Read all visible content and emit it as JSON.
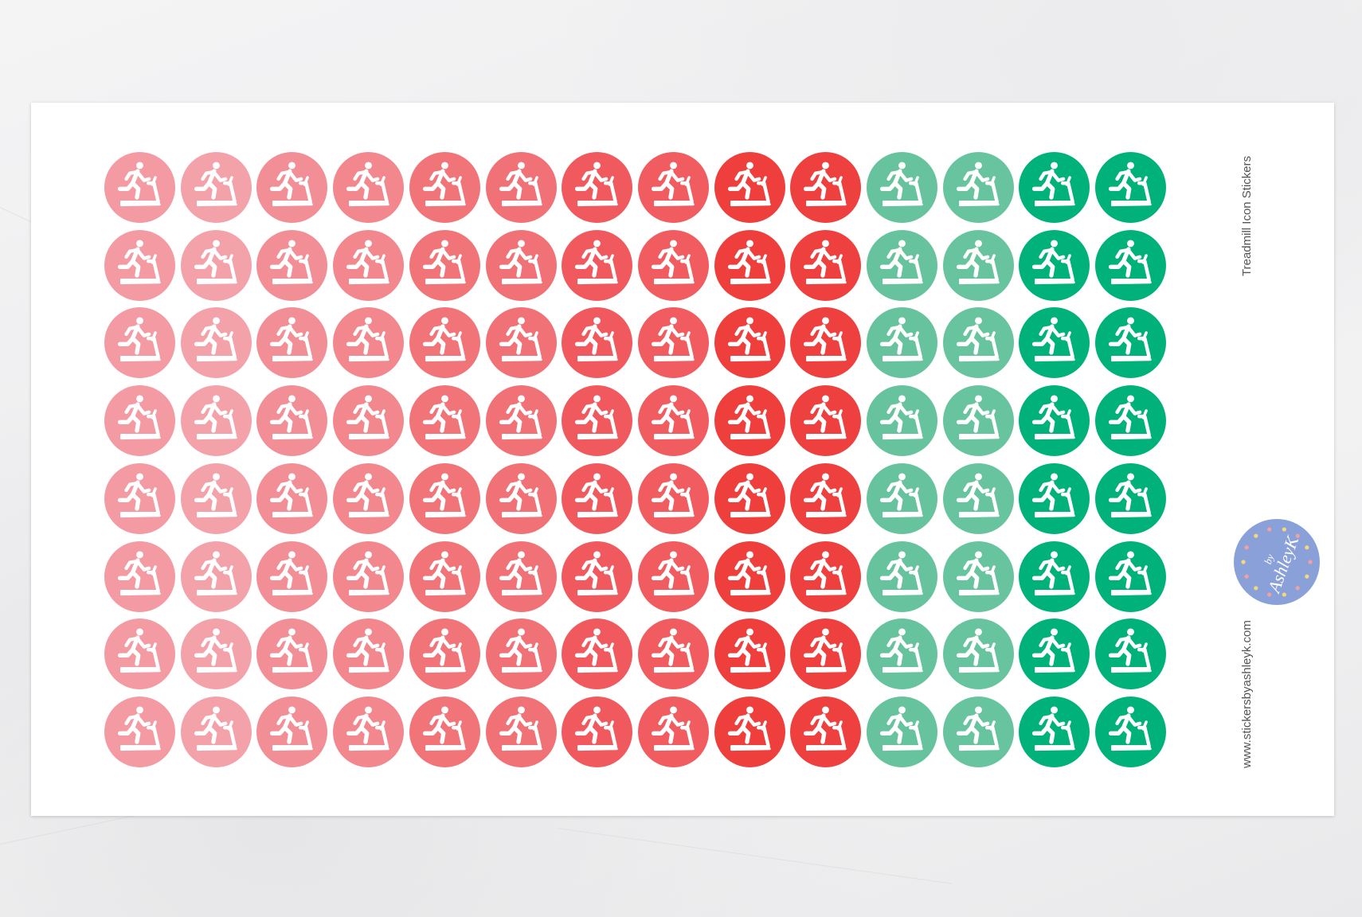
{
  "sheet": {
    "title": "Treadmill Icon Stickers",
    "website": "www.stickersbyashleyk.com",
    "logo": {
      "text": "by AshleyK",
      "color": "#8aa0d8",
      "heart_colors": [
        "#f4a0a0",
        "#f6d879"
      ]
    },
    "rows": 8,
    "icon": "treadmill-runner-icon",
    "icon_color": "#ffffff",
    "column_colors": [
      "#f39aa2",
      "#f4a2aa",
      "#f28e95",
      "#f2878e",
      "#f17479",
      "#f07176",
      "#f05a5e",
      "#f05c60",
      "#ee3f3d",
      "#ee403e",
      "#66c39d",
      "#67c49e",
      "#00b27a",
      "#00b27a"
    ]
  }
}
